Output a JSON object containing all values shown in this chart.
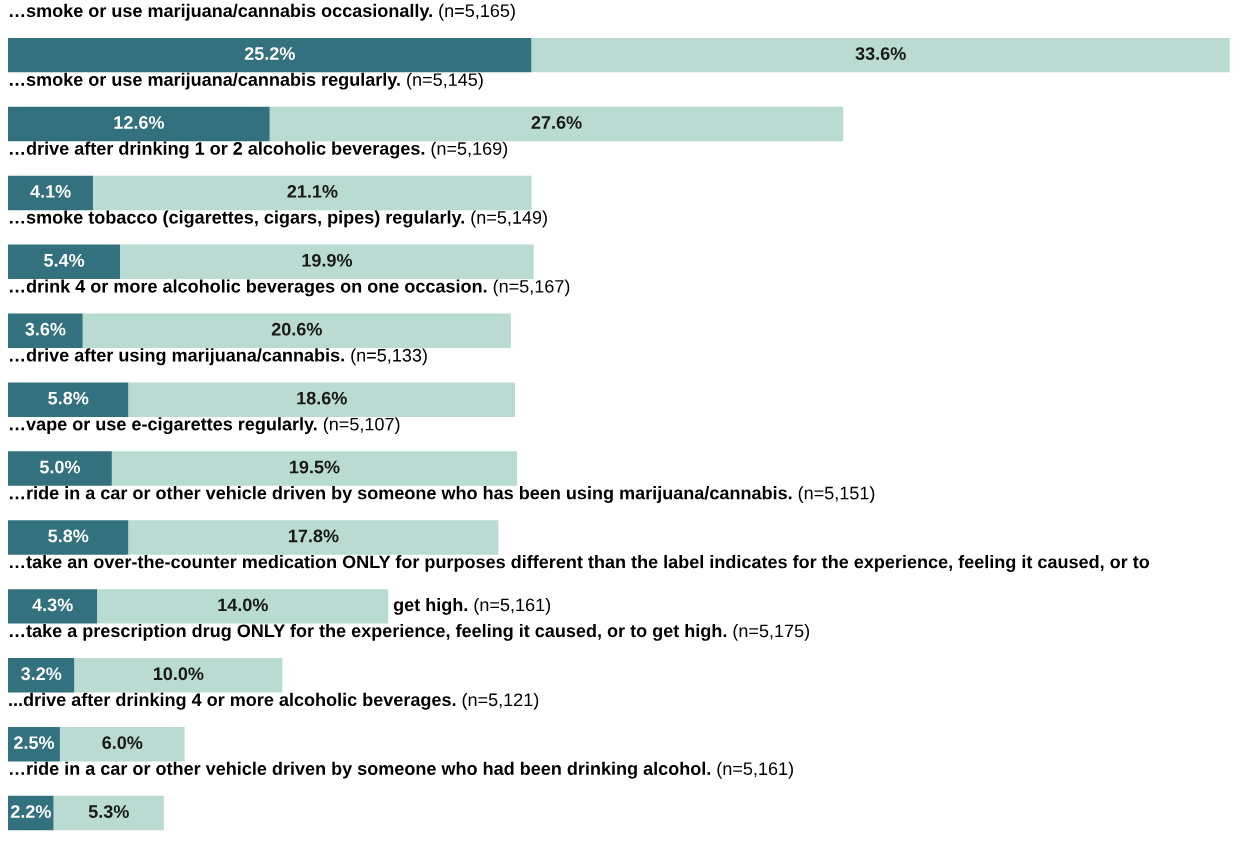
{
  "chart_data": {
    "type": "bar",
    "orientation": "horizontal",
    "stacked": true,
    "categories": [
      "…smoke or use marijuana/cannabis occasionally. (n=5,165)",
      "…smoke or use marijuana/cannabis regularly. (n=5,145)",
      "…drive after drinking 1 or 2 alcoholic beverages. (n=5,169)",
      "…smoke tobacco (cigarettes, cigars, pipes) regularly. (n=5,149)",
      "…drink 4 or more alcoholic beverages on one occasion. (n=5,167)",
      "…drive after using marijuana/cannabis. (n=5,133)",
      "…vape or use e-cigarettes regularly. (n=5,107)",
      "…ride in a car or other vehicle driven by someone who has been using marijuana/cannabis. (n=5,151)",
      "…take an over-the-counter medication ONLY for purposes different than the label indicates for the experience, feeling it caused, or to get high. (n=5,161)",
      "…take a prescription drug ONLY for the experience, feeling it caused, or to get high. (n=5,175)",
      "...drive after drinking 4 or more alcoholic beverages. (n=5,121)",
      "…ride in a car or other vehicle driven by someone who had been drinking alcohol. (n=5,161)"
    ],
    "series": [
      {
        "color": "#33717f",
        "values": [
          25.2,
          12.6,
          4.1,
          5.4,
          3.6,
          5.8,
          5.0,
          5.8,
          4.3,
          3.2,
          2.5,
          2.2
        ],
        "value_labels": [
          "25.2%",
          "12.6%",
          "4.1%",
          "5.4%",
          "3.6%",
          "5.8%",
          "5.0%",
          "5.8%",
          "4.3%",
          "3.2%",
          "2.5%",
          "2.2%"
        ]
      },
      {
        "color": "#b9dbd2",
        "values": [
          33.6,
          27.6,
          21.1,
          19.9,
          20.6,
          18.6,
          19.5,
          17.8,
          14.0,
          10.0,
          6.0,
          5.3
        ],
        "value_labels": [
          "33.6%",
          "27.6%",
          "21.1%",
          "19.9%",
          "20.6%",
          "18.6%",
          "19.5%",
          "17.8%",
          "14.0%",
          "10.0%",
          "6.0%",
          "5.3%"
        ]
      }
    ]
  }
}
